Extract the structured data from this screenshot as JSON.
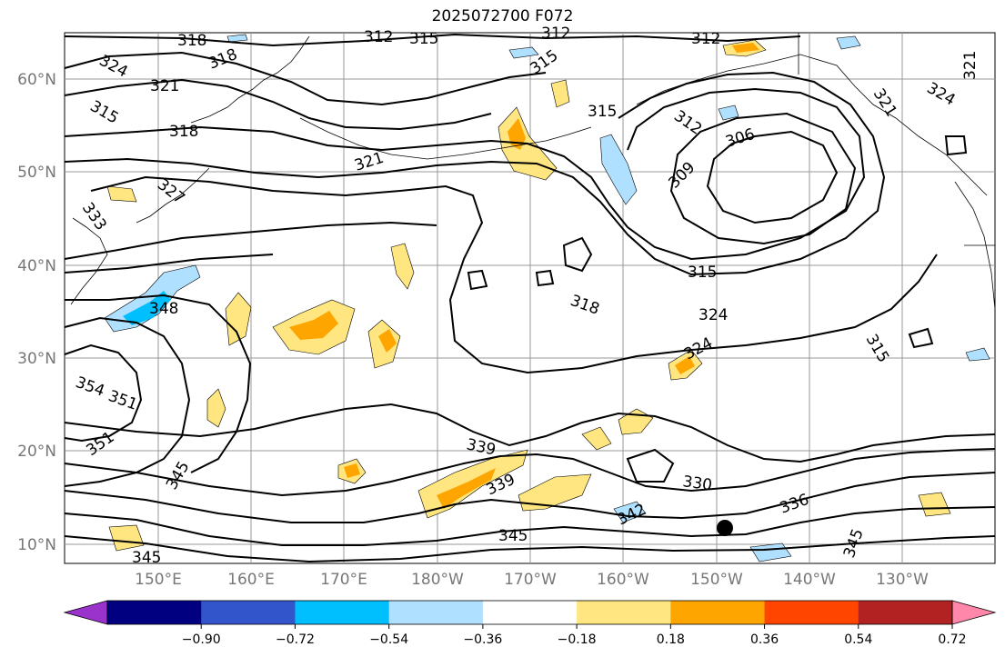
{
  "title": "2025072700 F072",
  "map": {
    "lon_range": [
      "140°E",
      "115°W"
    ],
    "lat_range": [
      "8°N",
      "65°N"
    ],
    "lat_ticks": [
      "60°N",
      "50°N",
      "40°N",
      "30°N",
      "20°N",
      "10°N"
    ],
    "lon_ticks": [
      "150°E",
      "160°E",
      "170°E",
      "180°W",
      "170°W",
      "160°W",
      "150°W",
      "140°W",
      "130°W"
    ],
    "contour_labels": [
      "318",
      "312",
      "315",
      "312",
      "312",
      "324",
      "318",
      "321",
      "315",
      "315",
      "315",
      "312",
      "306",
      "321",
      "324",
      "321",
      "318",
      "321",
      "327",
      "309",
      "333",
      "315",
      "318",
      "348",
      "324",
      "324",
      "315",
      "354",
      "351",
      "351",
      "339",
      "345",
      "339",
      "330",
      "336",
      "345",
      "345",
      "345",
      "342"
    ],
    "colors": {
      "land_line": "#000000",
      "grid": "#999999",
      "tick_label": "#777777"
    }
  },
  "colorbar": {
    "levels": [
      "−0.90",
      "−0.72",
      "−0.54",
      "−0.36",
      "−0.18",
      "0.18",
      "0.36",
      "0.54",
      "0.72",
      "0.90"
    ],
    "colors": [
      "#9933cc",
      "#000080",
      "#3355cc",
      "#00bfff",
      "#b0e0ff",
      "#ffffff",
      "#ffe680",
      "#ffa500",
      "#ff4500",
      "#b22222",
      "#ff88aa"
    ]
  }
}
